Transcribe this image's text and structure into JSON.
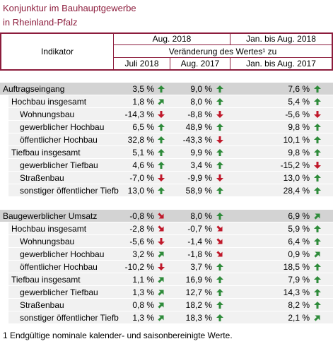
{
  "title": {
    "line1": "Konjunktur im Bauhauptgewerbe",
    "line2": "in Rheinland-Pfalz"
  },
  "header": {
    "indicator": "Indikator",
    "period": "Aug. 2018",
    "period_cumulative": "Jan. bis Aug. 2018",
    "change": "Veränderung des Wertes¹ zu",
    "compare": [
      "Juli 2018",
      "Aug. 2017",
      "Jan. bis Aug. 2017"
    ]
  },
  "sections": [
    {
      "rows": [
        {
          "label": "Auftragseingang",
          "level": 0,
          "values": [
            "3,5 %",
            "9,0 %",
            "7,6 %"
          ],
          "trends": [
            "up",
            "up",
            "up"
          ]
        },
        {
          "label": "Hochbau insgesamt",
          "level": 1,
          "values": [
            "1,8 %",
            "8,0 %",
            "5,4 %"
          ],
          "trends": [
            "up-right",
            "up",
            "up"
          ]
        },
        {
          "label": "Wohnungsbau",
          "level": 2,
          "values": [
            "-14,3 %",
            "-8,8 %",
            "-5,6 %"
          ],
          "trends": [
            "down",
            "down",
            "down"
          ]
        },
        {
          "label": "gewerblicher Hochbau",
          "level": 2,
          "values": [
            "6,5 %",
            "48,9 %",
            "9,8 %"
          ],
          "trends": [
            "up",
            "up",
            "up"
          ]
        },
        {
          "label": "öffentlicher Hochbau",
          "level": 2,
          "values": [
            "32,8 %",
            "-43,3 %",
            "10,1 %"
          ],
          "trends": [
            "up",
            "down",
            "up"
          ]
        },
        {
          "label": "Tiefbau insgesamt",
          "level": 1,
          "values": [
            "5,1 %",
            "9,9 %",
            "9,8 %"
          ],
          "trends": [
            "up",
            "up",
            "up"
          ]
        },
        {
          "label": "gewerblicher Tiefbau",
          "level": 2,
          "values": [
            "4,6 %",
            "3,4 %",
            "-15,2 %"
          ],
          "trends": [
            "up",
            "up",
            "down"
          ]
        },
        {
          "label": "Straßenbau",
          "level": 2,
          "values": [
            "-7,0 %",
            "-9,9 %",
            "13,0 %"
          ],
          "trends": [
            "down",
            "down",
            "up"
          ]
        },
        {
          "label": "sonstiger öffentlicher Tiefb",
          "level": 2,
          "values": [
            "13,0 %",
            "58,9 %",
            "28,4 %"
          ],
          "trends": [
            "up",
            "up",
            "up"
          ]
        }
      ]
    },
    {
      "rows": [
        {
          "label": "Baugewerblicher Umsatz",
          "level": 0,
          "values": [
            "-0,8 %",
            "8,0 %",
            "6,9 %"
          ],
          "trends": [
            "down-right",
            "up",
            "up-right"
          ]
        },
        {
          "label": "Hochbau insgesamt",
          "level": 1,
          "values": [
            "-2,8 %",
            "-0,7 %",
            "5,9 %"
          ],
          "trends": [
            "down-right",
            "down-right",
            "up"
          ]
        },
        {
          "label": "Wohnungsbau",
          "level": 2,
          "values": [
            "-5,6 %",
            "-1,4 %",
            "6,4 %"
          ],
          "trends": [
            "down",
            "down-right",
            "up"
          ]
        },
        {
          "label": "gewerblicher Hochbau",
          "level": 2,
          "values": [
            "3,2 %",
            "-1,8 %",
            "0,9 %"
          ],
          "trends": [
            "up-right",
            "down-right",
            "up-right"
          ]
        },
        {
          "label": "öffentlicher Hochbau",
          "level": 2,
          "values": [
            "-10,2 %",
            "3,7 %",
            "18,5 %"
          ],
          "trends": [
            "down",
            "up",
            "up"
          ]
        },
        {
          "label": "Tiefbau insgesamt",
          "level": 1,
          "values": [
            "1,1 %",
            "16,9 %",
            "7,9 %"
          ],
          "trends": [
            "up-right",
            "up",
            "up"
          ]
        },
        {
          "label": "gewerblicher Tiefbau",
          "level": 2,
          "values": [
            "1,3 %",
            "12,7 %",
            "14,3 %"
          ],
          "trends": [
            "up-right",
            "up",
            "up"
          ]
        },
        {
          "label": "Straßenbau",
          "level": 2,
          "values": [
            "0,8 %",
            "18,2 %",
            "8,2 %"
          ],
          "trends": [
            "up-right",
            "up",
            "up"
          ]
        },
        {
          "label": "sonstiger öffentlicher Tiefb",
          "level": 2,
          "values": [
            "1,3 %",
            "18,3 %",
            "2,1 %"
          ],
          "trends": [
            "up-right",
            "up",
            "up-right"
          ]
        }
      ]
    }
  ],
  "footnote": "1 Endgültige nominale kalender- und saisonbereinigte Werte."
}
